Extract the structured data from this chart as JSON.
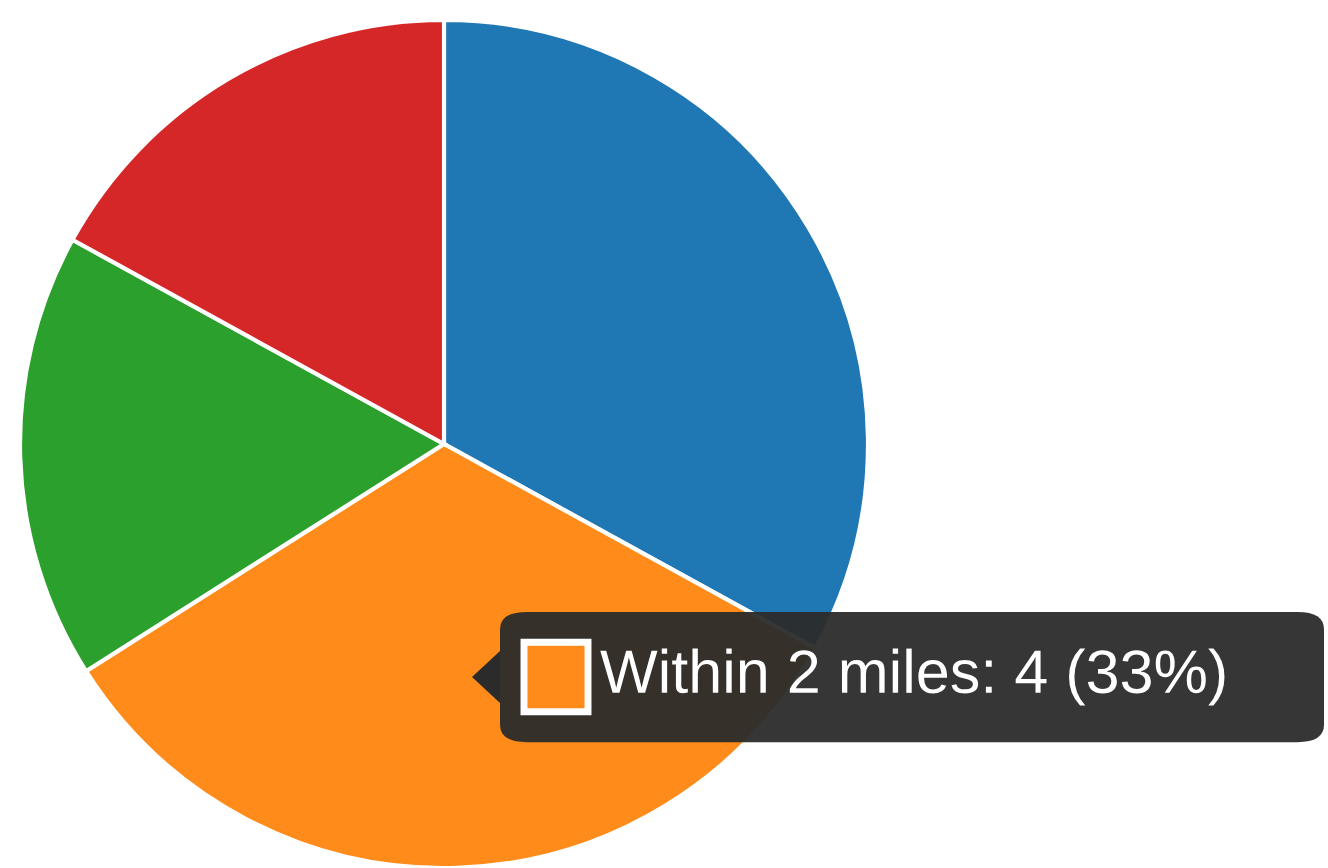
{
  "chart_data": {
    "type": "pie",
    "categories": [
      null,
      null,
      null,
      null
    ],
    "values": [
      33,
      33,
      17,
      17
    ],
    "colors": [
      "#1f77b4",
      "#ff8c1a",
      "#2ca02c",
      "#d62728"
    ],
    "annotations": [
      "Within 2 miles: 4 (33%)"
    ]
  }
}
